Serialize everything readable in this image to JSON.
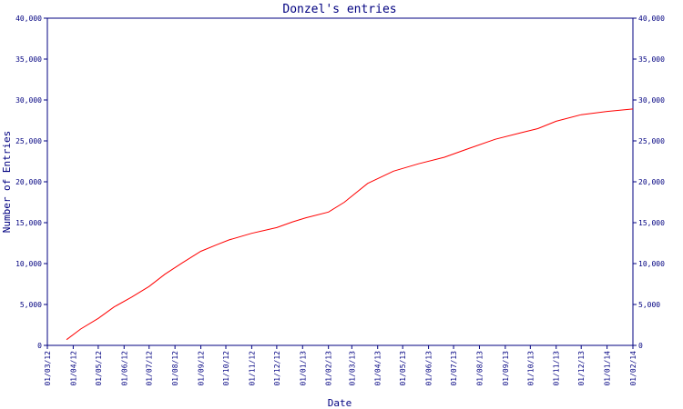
{
  "chart_data": {
    "type": "line",
    "title": "Donzel's entries",
    "xlabel": "Date",
    "ylabel": "Number of Entries",
    "ylim": [
      0,
      40000
    ],
    "xlim": [
      "2012-03-01",
      "2014-02-01"
    ],
    "y_ticks": [
      {
        "value": 0,
        "label": "0"
      },
      {
        "value": 5000,
        "label": "5,000"
      },
      {
        "value": 10000,
        "label": "10,000"
      },
      {
        "value": 15000,
        "label": "15,000"
      },
      {
        "value": 20000,
        "label": "20,000"
      },
      {
        "value": 25000,
        "label": "25,000"
      },
      {
        "value": 30000,
        "label": "30,000"
      },
      {
        "value": 35000,
        "label": "35,000"
      },
      {
        "value": 40000,
        "label": "40,000"
      }
    ],
    "x_ticks": [
      {
        "value": "2012-03-01",
        "label": "01/03/12"
      },
      {
        "value": "2012-04-01",
        "label": "01/04/12"
      },
      {
        "value": "2012-05-01",
        "label": "01/05/12"
      },
      {
        "value": "2012-06-01",
        "label": "01/06/12"
      },
      {
        "value": "2012-07-01",
        "label": "01/07/12"
      },
      {
        "value": "2012-08-01",
        "label": "01/08/12"
      },
      {
        "value": "2012-09-01",
        "label": "01/09/12"
      },
      {
        "value": "2012-10-01",
        "label": "01/10/12"
      },
      {
        "value": "2012-11-01",
        "label": "01/11/12"
      },
      {
        "value": "2012-12-01",
        "label": "01/12/12"
      },
      {
        "value": "2013-01-01",
        "label": "01/01/13"
      },
      {
        "value": "2013-02-01",
        "label": "01/02/13"
      },
      {
        "value": "2013-03-01",
        "label": "01/03/13"
      },
      {
        "value": "2013-04-01",
        "label": "01/04/13"
      },
      {
        "value": "2013-05-01",
        "label": "01/05/13"
      },
      {
        "value": "2013-06-01",
        "label": "01/06/13"
      },
      {
        "value": "2013-07-01",
        "label": "01/07/13"
      },
      {
        "value": "2013-08-01",
        "label": "01/08/13"
      },
      {
        "value": "2013-09-01",
        "label": "01/09/13"
      },
      {
        "value": "2013-10-01",
        "label": "01/10/13"
      },
      {
        "value": "2013-11-01",
        "label": "01/11/13"
      },
      {
        "value": "2013-12-01",
        "label": "01/12/13"
      },
      {
        "value": "2014-01-01",
        "label": "01/01/14"
      },
      {
        "value": "2014-02-01",
        "label": "01/02/14"
      }
    ],
    "grid": false,
    "right_axis": true,
    "series": [
      {
        "color": "#ff0000",
        "points": [
          {
            "x": "2012-03-24",
            "y": 700
          },
          {
            "x": "2012-04-10",
            "y": 2000
          },
          {
            "x": "2012-05-01",
            "y": 3300
          },
          {
            "x": "2012-05-20",
            "y": 4700
          },
          {
            "x": "2012-06-10",
            "y": 5900
          },
          {
            "x": "2012-07-01",
            "y": 7200
          },
          {
            "x": "2012-07-20",
            "y": 8700
          },
          {
            "x": "2012-08-10",
            "y": 10100
          },
          {
            "x": "2012-09-01",
            "y": 11500
          },
          {
            "x": "2012-09-20",
            "y": 12300
          },
          {
            "x": "2012-10-05",
            "y": 12900
          },
          {
            "x": "2012-11-01",
            "y": 13700
          },
          {
            "x": "2012-12-01",
            "y": 14400
          },
          {
            "x": "2012-12-20",
            "y": 15100
          },
          {
            "x": "2013-01-05",
            "y": 15600
          },
          {
            "x": "2013-02-01",
            "y": 16300
          },
          {
            "x": "2013-02-20",
            "y": 17500
          },
          {
            "x": "2013-03-20",
            "y": 19800
          },
          {
            "x": "2013-04-20",
            "y": 21300
          },
          {
            "x": "2013-05-20",
            "y": 22200
          },
          {
            "x": "2013-06-20",
            "y": 23000
          },
          {
            "x": "2013-07-20",
            "y": 24100
          },
          {
            "x": "2013-08-20",
            "y": 25200
          },
          {
            "x": "2013-09-20",
            "y": 26000
          },
          {
            "x": "2013-10-10",
            "y": 26500
          },
          {
            "x": "2013-11-01",
            "y": 27400
          },
          {
            "x": "2013-12-01",
            "y": 28200
          },
          {
            "x": "2014-01-01",
            "y": 28600
          },
          {
            "x": "2014-02-01",
            "y": 28900
          }
        ]
      }
    ]
  }
}
